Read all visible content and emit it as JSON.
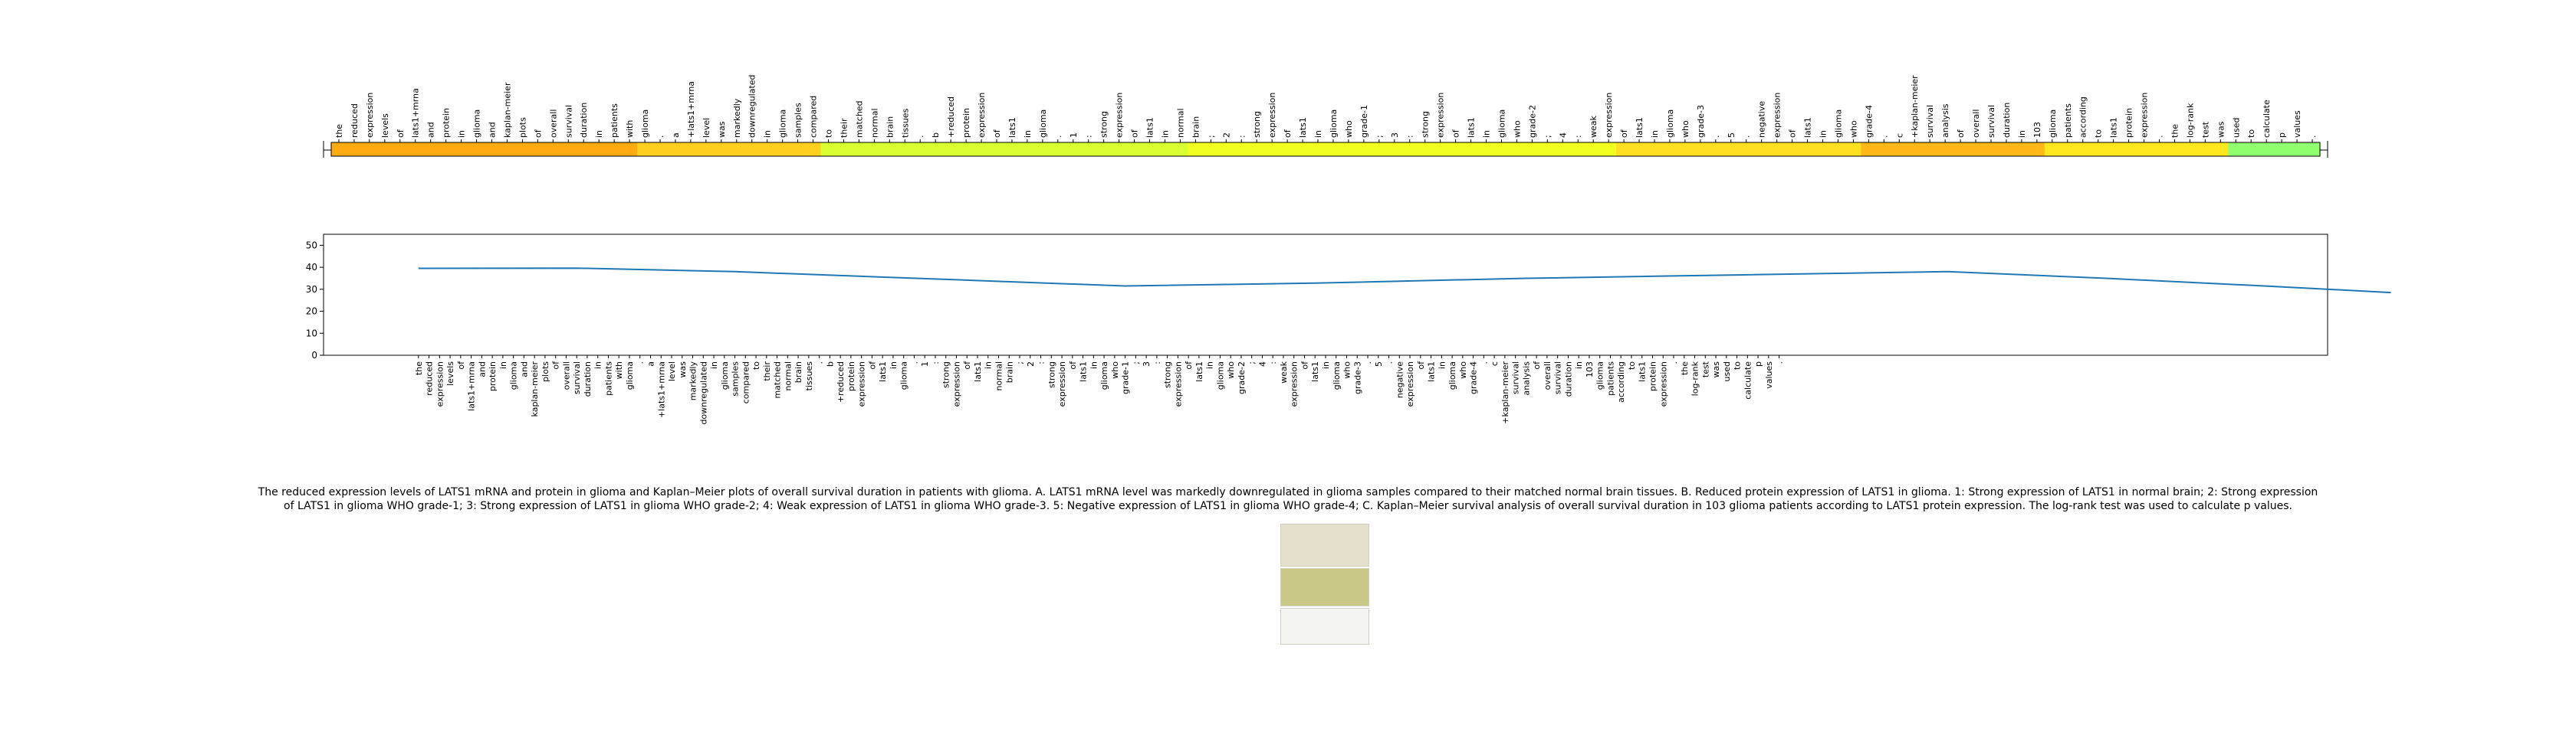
{
  "tokens": [
    "the",
    "reduced",
    "expression",
    "levels",
    "of",
    "lats1+mrna",
    "and",
    "protein",
    "in",
    "glioma",
    "and",
    "kaplan-meier",
    "plots",
    "of",
    "overall",
    "survival",
    "duration",
    "in",
    "patients",
    "with",
    "glioma",
    ".",
    "a",
    "+lats1+mrna",
    "level",
    "was",
    "markedly",
    "downregulated",
    "in",
    "glioma",
    "samples",
    "compared",
    "to",
    "their",
    "matched",
    "normal",
    "brain",
    "tissues",
    ".",
    "b",
    "+reduced",
    "protein",
    "expression",
    "of",
    "lats1",
    "in",
    "glioma",
    ".",
    "1",
    ":",
    "strong",
    "expression",
    "of",
    "lats1",
    "in",
    "normal",
    "brain",
    ";",
    "2",
    ":",
    "strong",
    "expression",
    "of",
    "lats1",
    "in",
    "glioma",
    "who",
    "grade-1",
    ";",
    "3",
    ":",
    "strong",
    "expression",
    "of",
    "lats1",
    "in",
    "glioma",
    "who",
    "grade-2",
    ";",
    "4",
    ":",
    "weak",
    "expression",
    "of",
    "lats1",
    "in",
    "glioma",
    "who",
    "grade-3",
    ".",
    "5",
    ".",
    "negative",
    "expression",
    "of",
    "lats1",
    "in",
    "glioma",
    "who",
    "grade-4",
    ".",
    "c",
    "+kaplan-meier",
    "survival",
    "analysis",
    "of",
    "overall",
    "survival",
    "duration",
    "in",
    "103",
    "glioma",
    "patients",
    "according",
    "to",
    "lats1",
    "protein",
    "expression",
    ".",
    "the",
    "log-rank",
    "test",
    "was",
    "used",
    "to",
    "calculate",
    "p",
    "values",
    "."
  ],
  "caption": "The reduced expression levels of LATS1 mRNA and protein in glioma and Kaplan–Meier plots of overall survival duration in patients with glioma. A. LATS1 mRNA level was markedly downregulated in glioma samples compared to their matched normal brain tissues. B. Reduced protein expression of LATS1 in glioma. 1: Strong expression of LATS1 in normal brain; 2: Strong expression of LATS1 in glioma WHO grade-1; 3: Strong expression of LATS1 in glioma WHO grade-2; 4: Weak expression of LATS1 in glioma WHO grade-3. 5: Negative expression of LATS1 in glioma WHO grade-4; C. Kaplan–Meier survival analysis of overall survival duration in 103 glioma patients according to LATS1 protein expression. The log-rank test was used to calculate p values.",
  "chart_data": [
    {
      "type": "heatmap",
      "xlabel": "",
      "ylabel": "",
      "tokens_ref": "tokens",
      "colors_by_segment": [
        {
          "from": 0,
          "to": 20,
          "color": "#ffaa10"
        },
        {
          "from": 20,
          "to": 32,
          "color": "#ffd020"
        },
        {
          "from": 32,
          "to": 56,
          "color": "#d8ff30"
        },
        {
          "from": 56,
          "to": 84,
          "color": "#f0ff20"
        },
        {
          "from": 84,
          "to": 100,
          "color": "#ffe020"
        },
        {
          "from": 100,
          "to": 112,
          "color": "#ffb818"
        },
        {
          "from": 112,
          "to": 124,
          "color": "#ffe820"
        },
        {
          "from": 124,
          "to": 140,
          "color": "#90ff70"
        }
      ]
    },
    {
      "type": "line",
      "xlabel": "",
      "ylabel": "",
      "ylim": [
        0,
        55
      ],
      "yticks": [
        0,
        10,
        20,
        30,
        40,
        50
      ],
      "xlim": [
        -9,
        181
      ],
      "series": [
        {
          "color": "#1f77b4",
          "points": [
            [
              0,
              39.5
            ],
            [
              15,
              39.6
            ],
            [
              30,
              38.0
            ],
            [
              50,
              34.5
            ],
            [
              67,
              31.5
            ],
            [
              85,
              32.8
            ],
            [
              105,
              35.0
            ],
            [
              125,
              36.5
            ],
            [
              145,
              38.0
            ],
            [
              160,
              35.0
            ],
            [
              175,
              31.5
            ],
            [
              187,
              28.5
            ]
          ]
        }
      ]
    }
  ],
  "thumbnail": {
    "panel_a_color": "#e4e0cc",
    "panel_b_color": "#c9c886",
    "panel_c_color": "#f4f4f0"
  }
}
